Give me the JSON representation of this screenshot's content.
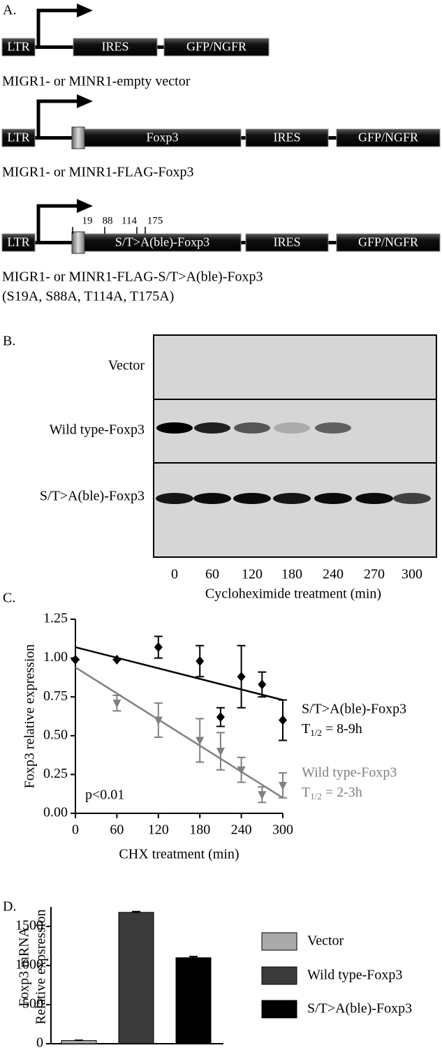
{
  "panel_a": {
    "label": "A.",
    "constructs": [
      {
        "segments": [
          "LTR",
          "IRES",
          "GFP/NGFR"
        ],
        "caption": [
          "MIGR1- or MINR1-empty vector"
        ]
      },
      {
        "segments": [
          "LTR",
          "Foxp3",
          "IRES",
          "GFP/NGFR"
        ],
        "caption": [
          "MIGR1- or MINR1-FLAG-Foxp3"
        ]
      },
      {
        "segments": [
          "LTR",
          "S/T>A(ble)-Foxp3",
          "IRES",
          "GFP/NGFR"
        ],
        "sites": [
          "19",
          "88",
          "114",
          "175"
        ],
        "caption": [
          "MIGR1- or MINR1-FLAG-S/T>A(ble)-Foxp3",
          "(S19A, S88A, T114A, T175A)"
        ]
      }
    ]
  },
  "panel_b": {
    "label": "B.",
    "rows": [
      "Vector",
      "Wild type-Foxp3",
      "S/T>A(ble)-Foxp3"
    ],
    "lanes": [
      "0",
      "60",
      "120",
      "180",
      "240",
      "270",
      "300"
    ],
    "xlabel": "Cycloheximide treatment (min)"
  },
  "chart_data": [
    {
      "panel_label": "C.",
      "type": "scatter",
      "xlabel": "CHX treatment (min)",
      "ylabel": "Foxp3 relative expression",
      "annotation": "p<0.01",
      "xlim": [
        0,
        300
      ],
      "xticks": [
        0,
        60,
        120,
        180,
        240,
        300
      ],
      "ylim": [
        0,
        1.25
      ],
      "yticks": [
        {
          "value": 0,
          "label": "0.00"
        },
        0.25,
        {
          "value": 0.5,
          "label": "0.50"
        },
        0.75,
        {
          "value": 1,
          "label": "1.00"
        },
        1.25
      ],
      "series": [
        {
          "name": "S/T>A(ble)-Foxp3",
          "half_life": {
            "symbol": "T",
            "subscript": "1/2",
            "text": "= 8-9h"
          },
          "color": "#000000",
          "marker": "diamond",
          "x": [
            0,
            60,
            120,
            180,
            210,
            240,
            270,
            300
          ],
          "values": [
            0.99,
            0.99,
            1.07,
            0.98,
            0.62,
            0.88,
            0.83,
            0.6
          ],
          "errors": [
            0,
            0,
            0.07,
            0.1,
            0.06,
            0.2,
            0.08,
            0.13
          ],
          "fit": {
            "x": [
              0,
              300
            ],
            "values": [
              1.07,
              0.73
            ]
          }
        },
        {
          "name": "Wild type-Foxp3",
          "half_life": {
            "symbol": "T",
            "subscript": "1/2",
            "text": "= 2-3h"
          },
          "color": "#808080",
          "marker": "triangle-down",
          "x": [
            60,
            120,
            180,
            210,
            240,
            270,
            300
          ],
          "values": [
            0.71,
            0.6,
            0.47,
            0.4,
            0.28,
            0.12,
            0.18
          ],
          "errors": [
            0.05,
            0.11,
            0.14,
            0.12,
            0.08,
            0.05,
            0.08
          ],
          "fit": {
            "x": [
              0,
              300
            ],
            "values": [
              0.94,
              0.1
            ]
          }
        }
      ]
    },
    {
      "panel_label": "D.",
      "type": "bar",
      "ylabel": [
        "Foxp3 mRNA",
        "Relative expsression"
      ],
      "ylim": [
        0,
        1750
      ],
      "yticks": [
        0,
        500,
        1000,
        1500
      ],
      "series": [
        {
          "name": "Vector",
          "color": "#aaaaaa",
          "values": [
            40
          ],
          "errors": [
            5
          ]
        },
        {
          "name": "Wild type-Foxp3",
          "color": "#3a3a3a",
          "values": [
            1680
          ],
          "errors": [
            10
          ]
        },
        {
          "name": "S/T>A(ble)-Foxp3",
          "color": "#000000",
          "values": [
            1100
          ],
          "errors": [
            15
          ]
        }
      ]
    }
  ]
}
